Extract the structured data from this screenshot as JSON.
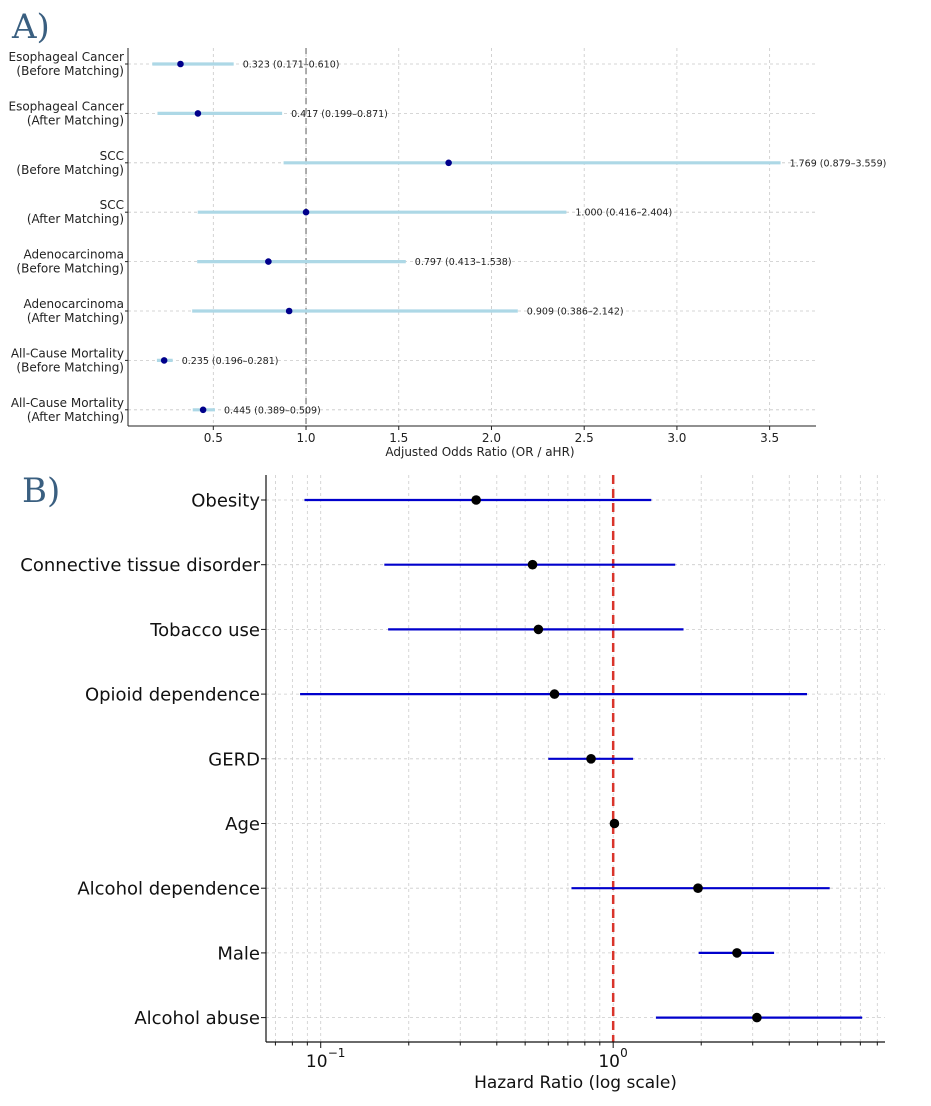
{
  "panels": {
    "a_label": "A)",
    "b_label": "B)"
  },
  "chart_data": [
    {
      "type": "forest",
      "xlabel": "Adjusted Odds Ratio (OR / aHR)",
      "xlim": [
        0.04,
        3.75
      ],
      "xticks": [
        0.5,
        1.0,
        1.5,
        2.0,
        2.5,
        3.0,
        3.5
      ],
      "xtick_labels": [
        "0.5",
        "1.0",
        "1.5",
        "2.0",
        "2.5",
        "3.0",
        "3.5"
      ],
      "reference_line": 1.0,
      "grid": true,
      "rows": [
        {
          "line1": "Esophageal Cancer",
          "line2": "(Before Matching)",
          "value": 0.323,
          "low": 0.171,
          "high": 0.61,
          "annotation": "0.323 (0.171–0.610)"
        },
        {
          "line1": "Esophageal Cancer",
          "line2": "(After Matching)",
          "value": 0.417,
          "low": 0.199,
          "high": 0.871,
          "annotation": "0.417 (0.199–0.871)"
        },
        {
          "line1": "SCC",
          "line2": "(Before Matching)",
          "value": 1.769,
          "low": 0.879,
          "high": 3.559,
          "annotation": "1.769 (0.879–3.559)"
        },
        {
          "line1": "SCC",
          "line2": "(After Matching)",
          "value": 1.0,
          "low": 0.416,
          "high": 2.404,
          "annotation": "1.000 (0.416–2.404)"
        },
        {
          "line1": "Adenocarcinoma",
          "line2": "(Before Matching)",
          "value": 0.797,
          "low": 0.413,
          "high": 1.538,
          "annotation": "0.797 (0.413–1.538)"
        },
        {
          "line1": "Adenocarcinoma",
          "line2": "(After Matching)",
          "value": 0.909,
          "low": 0.386,
          "high": 2.142,
          "annotation": "0.909 (0.386–2.142)"
        },
        {
          "line1": "All-Cause Mortality",
          "line2": "(Before Matching)",
          "value": 0.235,
          "low": 0.196,
          "high": 0.281,
          "annotation": "0.235 (0.196–0.281)"
        },
        {
          "line1": "All-Cause Mortality",
          "line2": "(After Matching)",
          "value": 0.445,
          "low": 0.389,
          "high": 0.509,
          "annotation": "0.445 (0.389–0.509)"
        }
      ],
      "colors": {
        "ci": "#add8e6",
        "point": "#00008b",
        "reference": "#808080"
      }
    },
    {
      "type": "forest",
      "xlabel": "Hazard Ratio (log scale)",
      "xscale": "log",
      "xlim": [
        0.065,
        8.5
      ],
      "xticks": [
        0.1,
        1
      ],
      "xtick_labels": [
        "10",
        "10"
      ],
      "xtick_exponents": [
        "−1",
        "0"
      ],
      "reference_line": 1.0,
      "grid": true,
      "rows": [
        {
          "label": "Obesity",
          "value": 0.34,
          "low": 0.088,
          "high": 1.35
        },
        {
          "label": "Connective tissue disorder",
          "value": 0.53,
          "low": 0.165,
          "high": 1.63
        },
        {
          "label": "Tobacco use",
          "value": 0.555,
          "low": 0.17,
          "high": 1.74
        },
        {
          "label": "Opioid dependence",
          "value": 0.63,
          "low": 0.085,
          "high": 4.6
        },
        {
          "label": "GERD",
          "value": 0.84,
          "low": 0.6,
          "high": 1.17
        },
        {
          "label": "Age",
          "value": 1.01,
          "low": 1.0,
          "high": 1.02
        },
        {
          "label": "Alcohol dependence",
          "value": 1.95,
          "low": 0.72,
          "high": 5.5
        },
        {
          "label": "Male",
          "value": 2.65,
          "low": 1.96,
          "high": 3.55
        },
        {
          "label": "Alcohol abuse",
          "value": 3.1,
          "low": 1.4,
          "high": 7.1
        }
      ],
      "colors": {
        "ci": "#0000cc",
        "point": "#000000",
        "reference": "#d9342b"
      }
    }
  ]
}
